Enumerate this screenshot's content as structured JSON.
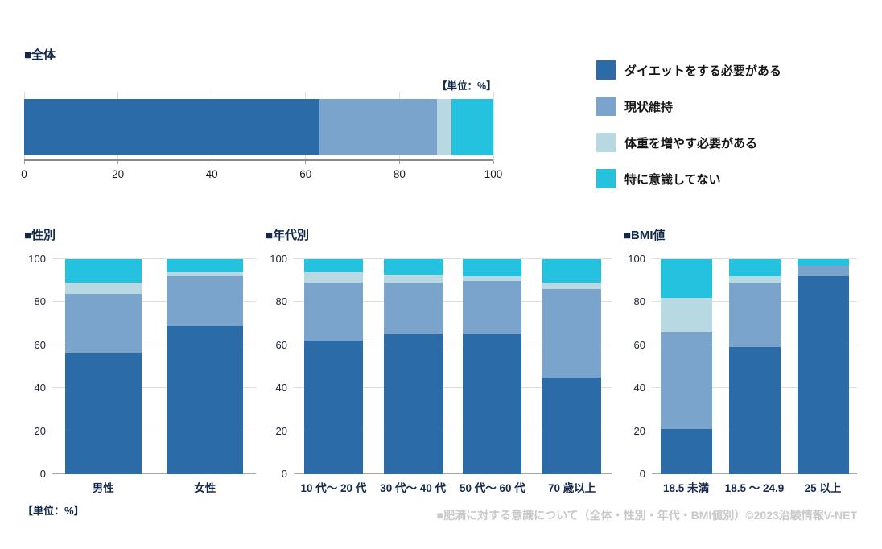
{
  "colors": {
    "series": [
      "#2B6CA8",
      "#7AA4CC",
      "#B9D9E2",
      "#25C2DF"
    ],
    "title_navy": "#12294B",
    "grid": "#DEDEDE",
    "axis": "#8A8A8A",
    "footer_gray": "#C9C9C9"
  },
  "legend": {
    "items": [
      {
        "label": "ダイエットをする必要がある",
        "color": "#2B6CA8"
      },
      {
        "label": "現状維持",
        "color": "#7AA4CC"
      },
      {
        "label": "体重を増やす必要がある",
        "color": "#B9D9E2"
      },
      {
        "label": "特に意識してない",
        "color": "#25C2DF"
      }
    ]
  },
  "sections": {
    "overall": {
      "title": "■全体",
      "unit_label": "【単位：%】"
    },
    "gender": {
      "title": "■性別"
    },
    "age": {
      "title": "■年代別"
    },
    "bmi": {
      "title": "■BMI値"
    }
  },
  "unit_label_bottom": "【単位：%】",
  "footer": {
    "text": "■肥満に対する意識について（全体・性別・年代・BMI値別）©2023治験情報V-NET"
  },
  "chart_data": [
    {
      "id": "overall",
      "type": "bar",
      "orientation": "horizontal",
      "stacked": true,
      "title": "■全体",
      "unit": "%",
      "categories": [
        "全体"
      ],
      "series": [
        {
          "name": "ダイエットをする必要がある",
          "values": [
            63
          ]
        },
        {
          "name": "現状維持",
          "values": [
            25
          ]
        },
        {
          "name": "体重を増やす必要がある",
          "values": [
            3
          ]
        },
        {
          "name": "特に意識してない",
          "values": [
            9
          ]
        }
      ],
      "xlim": [
        0,
        100
      ],
      "x_ticks": [
        0,
        20,
        40,
        60,
        80,
        100
      ],
      "grid": true,
      "legend_position": "right"
    },
    {
      "id": "gender",
      "type": "bar",
      "orientation": "vertical",
      "stacked": true,
      "title": "■性別",
      "unit": "%",
      "categories": [
        "男性",
        "女性"
      ],
      "series": [
        {
          "name": "ダイエットをする必要がある",
          "values": [
            56,
            69
          ]
        },
        {
          "name": "現状維持",
          "values": [
            28,
            23
          ]
        },
        {
          "name": "体重を増やす必要がある",
          "values": [
            5,
            2
          ]
        },
        {
          "name": "特に意識してない",
          "values": [
            11,
            6
          ]
        }
      ],
      "ylim": [
        0,
        100
      ],
      "y_ticks": [
        0,
        20,
        40,
        60,
        80,
        100
      ],
      "grid": true
    },
    {
      "id": "age",
      "type": "bar",
      "orientation": "vertical",
      "stacked": true,
      "title": "■年代別",
      "unit": "%",
      "categories": [
        "10 代～ 20 代",
        "30 代～ 40 代",
        "50 代～ 60 代",
        "70 歳以上"
      ],
      "series": [
        {
          "name": "ダイエットをする必要がある",
          "values": [
            62,
            65,
            65,
            45
          ]
        },
        {
          "name": "現状維持",
          "values": [
            27,
            24,
            25,
            41
          ]
        },
        {
          "name": "体重を増やす必要がある",
          "values": [
            5,
            4,
            2,
            3
          ]
        },
        {
          "name": "特に意識してない",
          "values": [
            6,
            7,
            8,
            11
          ]
        }
      ],
      "ylim": [
        0,
        100
      ],
      "y_ticks": [
        0,
        20,
        40,
        60,
        80,
        100
      ],
      "grid": true
    },
    {
      "id": "bmi",
      "type": "bar",
      "orientation": "vertical",
      "stacked": true,
      "title": "■BMI値",
      "unit": "%",
      "categories": [
        "18.5 未満",
        "18.5 ～ 24.9",
        "25 以上"
      ],
      "series": [
        {
          "name": "ダイエットをする必要がある",
          "values": [
            21,
            59,
            92
          ]
        },
        {
          "name": "現状維持",
          "values": [
            45,
            30,
            5
          ]
        },
        {
          "name": "体重を増やす必要がある",
          "values": [
            16,
            3,
            0
          ]
        },
        {
          "name": "特に意識してない",
          "values": [
            18,
            8,
            3
          ]
        }
      ],
      "ylim": [
        0,
        100
      ],
      "y_ticks": [
        0,
        20,
        40,
        60,
        80,
        100
      ],
      "grid": true
    }
  ]
}
